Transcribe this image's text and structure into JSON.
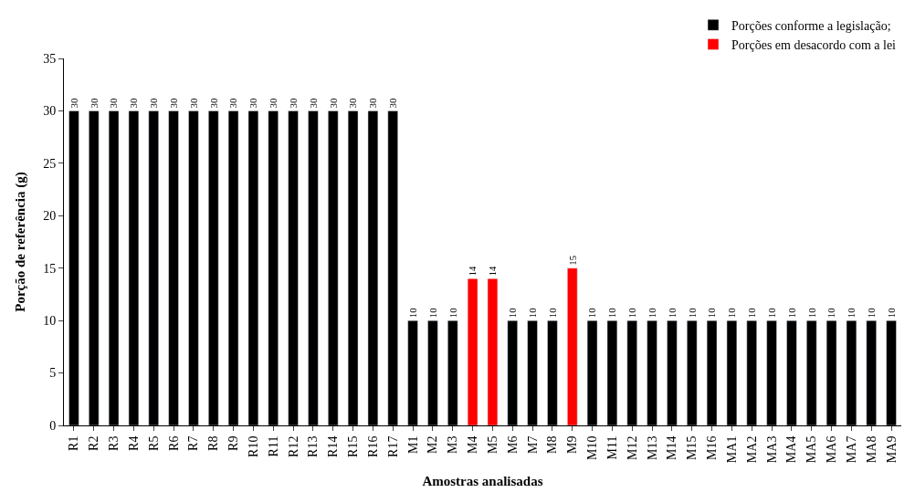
{
  "chart_data": {
    "type": "bar",
    "xlabel": "Amostras analisadas",
    "ylabel": "Porção de referência (g)",
    "categories": [
      "R1",
      "R2",
      "R3",
      "R4",
      "R5",
      "R6",
      "R7",
      "R8",
      "R9",
      "R10",
      "R11",
      "R12",
      "R13",
      "R14",
      "R15",
      "R16",
      "R17",
      "M1",
      "M2",
      "M3",
      "M4",
      "M5",
      "M6",
      "M7",
      "M8",
      "M9",
      "M10",
      "M11",
      "M12",
      "M13",
      "M14",
      "M15",
      "M16",
      "MA1",
      "MA2",
      "MA3",
      "MA4",
      "MA5",
      "MA6",
      "MA7",
      "MA8",
      "MA9"
    ],
    "series": [
      {
        "name": "Porções conforme a legislação;",
        "color": "#000000",
        "values": [
          30,
          30,
          30,
          30,
          30,
          30,
          30,
          30,
          30,
          30,
          30,
          30,
          30,
          30,
          30,
          30,
          30,
          10,
          10,
          10,
          null,
          null,
          10,
          10,
          10,
          null,
          10,
          10,
          10,
          10,
          10,
          10,
          10,
          10,
          10,
          10,
          10,
          10,
          10,
          10,
          10,
          10
        ]
      },
      {
        "name": "Porções em desacordo com a lei",
        "color": "#ff0000",
        "values": [
          null,
          null,
          null,
          null,
          null,
          null,
          null,
          null,
          null,
          null,
          null,
          null,
          null,
          null,
          null,
          null,
          null,
          null,
          null,
          null,
          14,
          14,
          null,
          null,
          null,
          15,
          null,
          null,
          null,
          null,
          null,
          null,
          null,
          null,
          null,
          null,
          null,
          null,
          null,
          null,
          null,
          null
        ]
      }
    ],
    "ylim": [
      0,
      35
    ],
    "yticks": [
      0,
      5,
      10,
      15,
      20,
      25,
      30,
      35
    ],
    "data_labels": true,
    "legend": "top right"
  }
}
